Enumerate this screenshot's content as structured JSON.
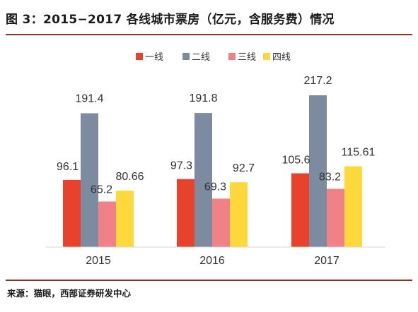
{
  "title": "图 3：2015−2017 各线城市票房（亿元，含服务费）情况",
  "source": "来源：猫眼，西部证券研发中心",
  "chart_data": {
    "type": "bar",
    "categories": [
      "2015",
      "2016",
      "2017"
    ],
    "series": [
      {
        "name": "一线",
        "color": "#e8412c",
        "values": [
          96.1,
          97.3,
          105.6
        ],
        "labels": [
          "96.1",
          "97.3",
          "105.6"
        ]
      },
      {
        "name": "二线",
        "color": "#7d8ba0",
        "values": [
          191.4,
          191.8,
          217.2
        ],
        "labels": [
          "191.4",
          "191.8",
          "217.2"
        ]
      },
      {
        "name": "三线",
        "color": "#f08186",
        "values": [
          65.2,
          69.3,
          83.2
        ],
        "labels": [
          "65.2",
          "69.3",
          "83.2"
        ]
      },
      {
        "name": "四线",
        "color": "#ffd93c",
        "values": [
          80.66,
          92.7,
          115.61
        ],
        "labels": [
          "80.66",
          "92.7",
          "115.61"
        ]
      }
    ],
    "legend_position": "top-center",
    "grid": false,
    "ylim": [
      0,
      240
    ]
  }
}
